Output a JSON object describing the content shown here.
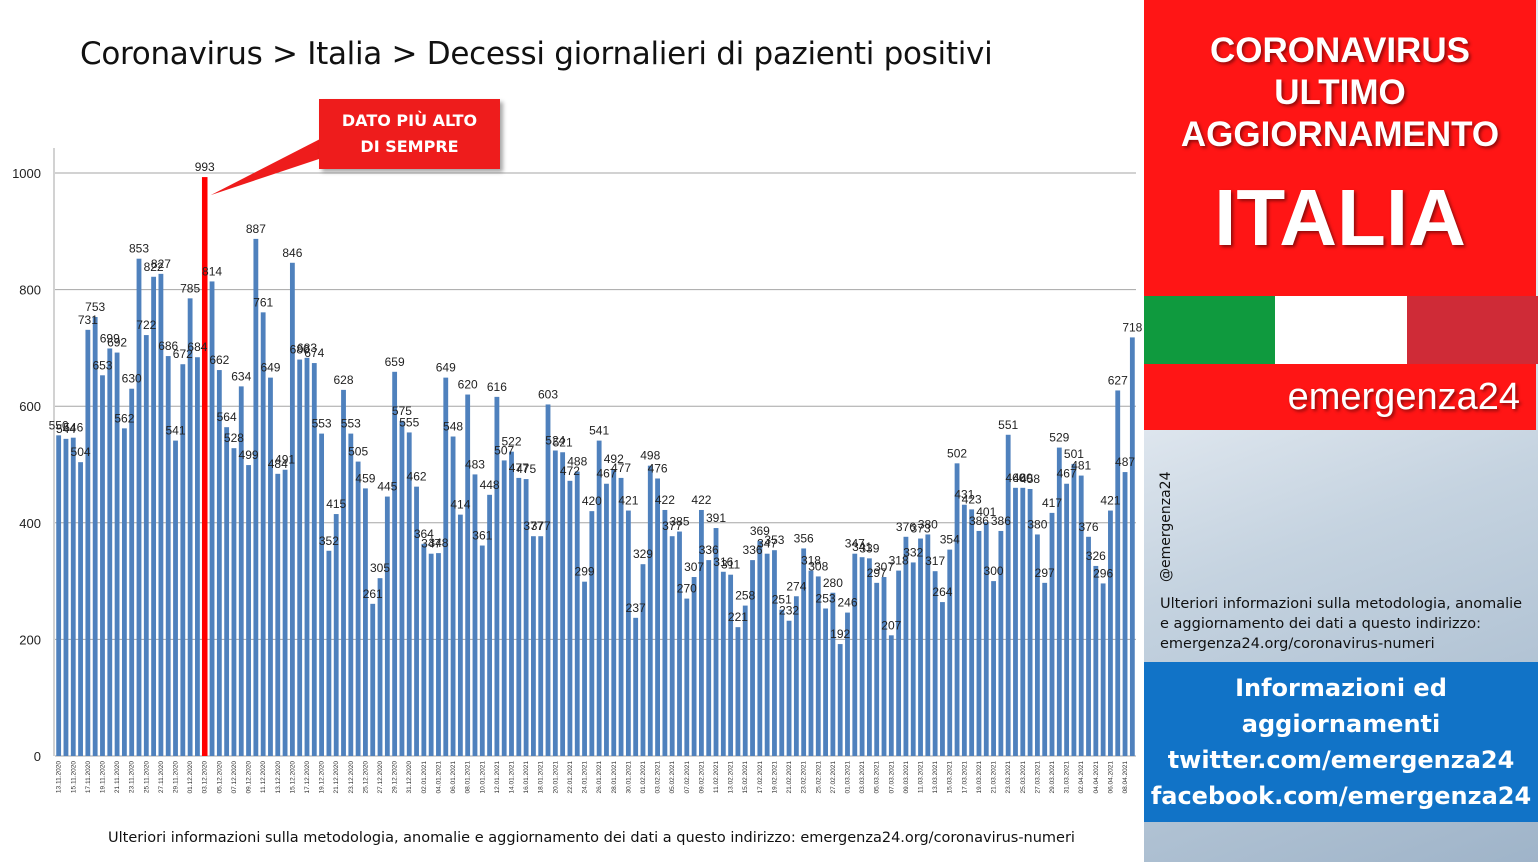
{
  "title": "Coronavirus > Italia > Decessi giornalieri di pazienti positivi",
  "callout": "DATO PIÙ ALTO DI SEMPRE",
  "footnote": "Ulteriori informazioni sulla metodologia, anomalie e aggiornamento dei dati a questo indirizzo: emergenza24.org/coronavirus-numeri",
  "side_panel": {
    "heading_lines": [
      "CORONAVIRUS",
      "ULTIMO",
      "AGGIORNAMENTO"
    ],
    "country": "ITALIA",
    "brand": "emergenza24",
    "handle": "@emergenza24",
    "info_lines": [
      "Ulteriori informazioni sulla metodologia, anomalie",
      "e aggiornamento dei dati a questo indirizzo:",
      "emergenza24.org/coronavirus-numeri"
    ],
    "links_lines": [
      "Informazioni ed",
      "aggiornamenti",
      "twitter.com/emergenza24",
      "facebook.com/emergenza24"
    ],
    "flag_colors": [
      "#0f9a3e",
      "#ffffff",
      "#cf2b37"
    ],
    "header_color": "#ff1515",
    "links_color": "#1173c7"
  },
  "chart_data": {
    "type": "bar",
    "ylim": [
      0,
      1000
    ],
    "yticks": [
      0,
      200,
      400,
      600,
      800,
      1000
    ],
    "bar_color": "#4f81bd",
    "highlight_color": "#ff0000",
    "highlight_value": 993,
    "x_tick_labels": [
      "13.11.2020",
      "15.11.2020",
      "17.11.2020",
      "19.11.2020",
      "21.11.2020",
      "23.11.2020",
      "25.11.2020",
      "27.11.2020",
      "29.11.2020",
      "01.12.2020",
      "03.12.2020",
      "05.12.2020",
      "07.12.2020",
      "09.12.2020",
      "11.12.2020",
      "13.12.2020",
      "15.12.2020",
      "17.12.2020",
      "19.12.2020",
      "21.12.2020",
      "23.12.2020",
      "25.12.2020",
      "27.12.2020",
      "29.12.2020",
      "31.12.2020",
      "02.01.2021",
      "04.01.2021",
      "06.01.2021",
      "08.01.2021",
      "10.01.2021",
      "12.01.2021",
      "14.01.2021",
      "16.01.2021",
      "18.01.2021",
      "20.01.2021",
      "22.01.2021",
      "24.01.2021",
      "26.01.2021",
      "28.01.2021",
      "30.01.2021",
      "01.02.2021",
      "03.02.2021",
      "05.02.2021",
      "07.02.2021",
      "09.02.2021",
      "11.02.2021",
      "13.02.2021",
      "15.02.2021",
      "17.02.2021",
      "19.02.2021",
      "21.02.2021",
      "23.02.2021",
      "25.02.2021",
      "27.02.2021",
      "01.03.2021",
      "03.03.2021",
      "05.03.2021",
      "07.03.2021",
      "09.03.2021",
      "11.03.2021",
      "13.03.2021",
      "15.03.2021",
      "17.03.2021",
      "19.03.2021",
      "21.03.2021",
      "23.03.2021",
      "25.03.2021",
      "27.03.2021",
      "29.03.2021",
      "31.03.2021",
      "02.04.2021",
      "04.04.2021",
      "06.04.2021",
      "08.04.2021"
    ],
    "values": [
      550,
      544,
      546,
      504,
      731,
      753,
      653,
      699,
      692,
      562,
      630,
      853,
      722,
      822,
      827,
      686,
      541,
      672,
      785,
      684,
      993,
      814,
      662,
      564,
      528,
      634,
      499,
      887,
      761,
      649,
      484,
      491,
      846,
      680,
      683,
      674,
      553,
      352,
      415,
      628,
      553,
      505,
      459,
      261,
      305,
      445,
      659,
      575,
      555,
      462,
      364,
      347,
      348,
      649,
      548,
      414,
      620,
      483,
      361,
      448,
      616,
      507,
      522,
      477,
      475,
      377,
      377,
      603,
      524,
      521,
      472,
      488,
      299,
      420,
      541,
      467,
      492,
      477,
      421,
      237,
      329,
      498,
      476,
      422,
      377,
      385,
      270,
      307,
      422,
      336,
      391,
      316,
      311,
      221,
      258,
      336,
      369,
      347,
      353,
      251,
      232,
      274,
      356,
      318,
      308,
      253,
      280,
      192,
      246,
      347,
      341,
      339,
      297,
      307,
      207,
      318,
      376,
      332,
      373,
      380,
      317,
      264,
      354,
      502,
      431,
      423,
      386,
      401,
      300,
      386,
      551,
      460,
      460,
      458,
      380,
      297,
      417,
      529,
      467,
      501,
      481,
      376,
      326,
      296,
      421,
      627,
      487,
      718
    ]
  }
}
